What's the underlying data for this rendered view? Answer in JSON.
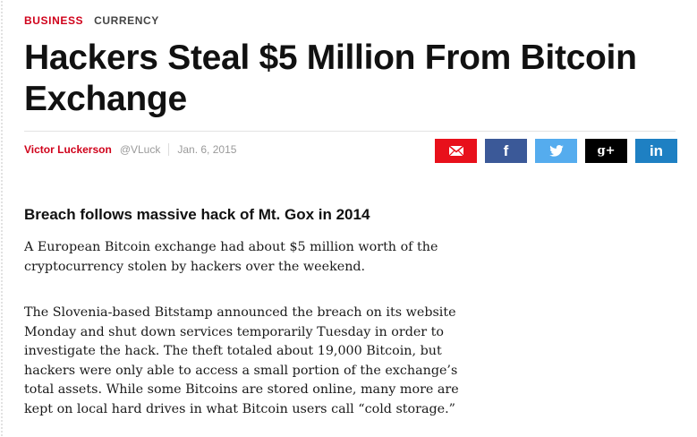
{
  "article": {
    "section": "BUSINESS",
    "topic": "CURRENCY",
    "headline": "Hackers Steal $5 Million From Bitcoin Exchange",
    "byline": {
      "author": "Victor Luckerson",
      "handle": "@VLuck",
      "date": "Jan. 6, 2015"
    },
    "share": [
      {
        "network": "email",
        "icon": "envelope-icon",
        "color": "#e8101b"
      },
      {
        "network": "facebook",
        "icon": "facebook-icon",
        "glyph": "f",
        "color": "#3b5998"
      },
      {
        "network": "twitter",
        "icon": "twitter-bird-icon",
        "color": "#55acee"
      },
      {
        "network": "google-plus",
        "icon": "google-plus-icon",
        "glyph": "g+",
        "color": "#000000"
      },
      {
        "network": "linkedin",
        "icon": "linkedin-icon",
        "glyph": "in",
        "color": "#1e80c3"
      }
    ],
    "subheadline": "Breach follows massive hack of Mt. Gox in 2014",
    "paragraphs": [
      "A European Bitcoin exchange had about $5 million worth of the cryptocurrency stolen by hackers over the weekend.",
      "The Slovenia-based Bitstamp announced the breach on its website Monday and shut down services temporarily Tuesday in order to investigate the hack. The theft totaled about 19,000 Bitcoin, but hackers were only able to access a small portion of the exchange’s total assets. While some Bitcoins are stored online, many more are kept on local hard drives in what Bitcoin users call “cold storage.”"
    ]
  },
  "colors": {
    "accent": "#d0021b",
    "muted_text": "#9a9a9a"
  }
}
